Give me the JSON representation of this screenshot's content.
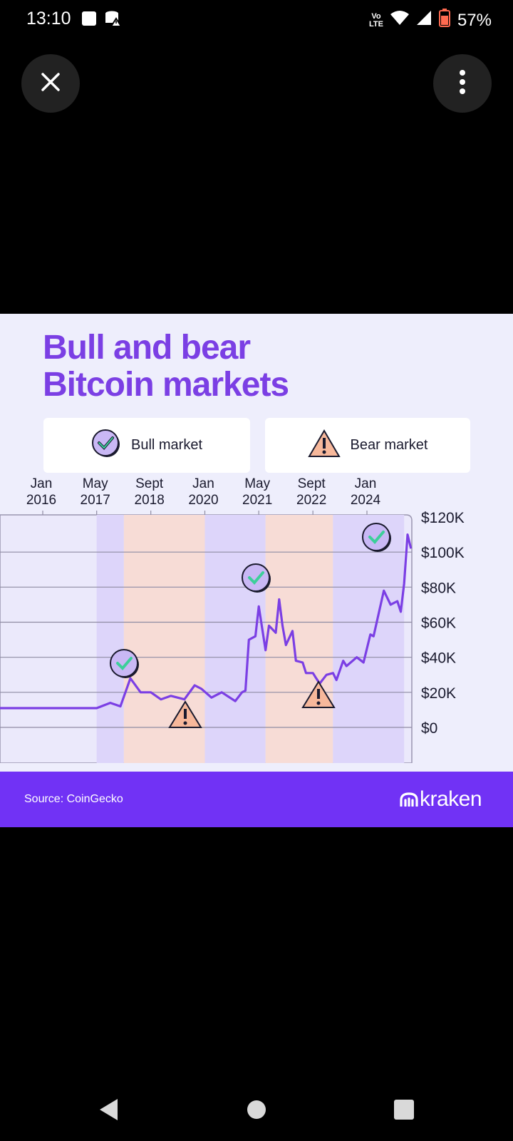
{
  "status_bar": {
    "time": "13:10",
    "battery_percent": "57%",
    "icons": [
      "notification-square-icon",
      "database-warning-icon",
      "volte-icon",
      "wifi-icon",
      "cell-signal-icon",
      "battery-icon"
    ]
  },
  "viewer": {
    "close_icon": "close-icon",
    "more_icon": "more-vertical-icon"
  },
  "image": {
    "title_line1": "Bull and bear",
    "title_line2": "Bitcoin markets",
    "legend": {
      "bull_label": "Bull market",
      "bear_label": "Bear market",
      "bull_icon": "check-badge-icon",
      "bear_icon": "warning-triangle-icon"
    },
    "colors": {
      "title": "#7b3fe4",
      "line": "#7b3fe4",
      "bull_band": "#ddd5fa",
      "bear_band": "#f7dcd6",
      "background": "#eeeefc",
      "footer": "#7132f5"
    },
    "source": "Source: CoinGecko",
    "brand": "kraken"
  },
  "chart_data": {
    "type": "line",
    "x_ticks": [
      {
        "line1": "Jan",
        "line2": "2016"
      },
      {
        "line1": "May",
        "line2": "2017"
      },
      {
        "line1": "Sept",
        "line2": "2018"
      },
      {
        "line1": "Jan",
        "line2": "2020"
      },
      {
        "line1": "May",
        "line2": "2021"
      },
      {
        "line1": "Sept",
        "line2": "2022"
      },
      {
        "line1": "Jan",
        "line2": "2024"
      }
    ],
    "y_ticks": [
      "$120K",
      "$100K",
      "$80K",
      "$60K",
      "$40K",
      "$20K",
      "$0"
    ],
    "ylim": [
      0,
      120000
    ],
    "grid": true,
    "periods": [
      {
        "type": "bull",
        "start": "2017-05",
        "end": "2018-01"
      },
      {
        "type": "bear",
        "start": "2018-01",
        "end": "2020-01"
      },
      {
        "type": "bull",
        "start": "2020-01",
        "end": "2021-07"
      },
      {
        "type": "bear",
        "start": "2021-07",
        "end": "2023-03"
      },
      {
        "type": "bull",
        "start": "2023-03",
        "end": "2024-12"
      }
    ],
    "series": [
      {
        "x": [
          "2014-06",
          "2015-06",
          "2016-01",
          "2016-06",
          "2017-01",
          "2017-05",
          "2017-09",
          "2017-12",
          "2018-03",
          "2018-06",
          "2018-09",
          "2018-12",
          "2019-03",
          "2019-07",
          "2019-10",
          "2019-12",
          "2020-03",
          "2020-06",
          "2020-10",
          "2020-12",
          "2021-01",
          "2021-02",
          "2021-04",
          "2021-05",
          "2021-07",
          "2021-08",
          "2021-10",
          "2021-11",
          "2021-12",
          "2022-01",
          "2022-03",
          "2022-04",
          "2022-06",
          "2022-07",
          "2022-09",
          "2022-10",
          "2022-11",
          "2023-01",
          "2023-03",
          "2023-04",
          "2023-06",
          "2023-07",
          "2023-10",
          "2023-12",
          "2024-01",
          "2024-02",
          "2024-03",
          "2024-06",
          "2024-08",
          "2024-10",
          "2024-11",
          "2024-12",
          "2025-01",
          "2025-02"
        ],
        "y": [
          11000,
          11000,
          11000,
          11000,
          11000,
          11000,
          14000,
          12000,
          28000,
          20000,
          20000,
          16000,
          18000,
          16000,
          24000,
          22000,
          17000,
          20000,
          15000,
          20000,
          21000,
          50000,
          52000,
          69000,
          44000,
          58000,
          54000,
          73000,
          58000,
          47000,
          55000,
          38000,
          37000,
          31000,
          31000,
          28000,
          25000,
          30000,
          31000,
          27000,
          38000,
          35000,
          40000,
          37000,
          45000,
          53000,
          52000,
          78000,
          70000,
          72000,
          66000,
          82000,
          110000,
          102000
        ]
      }
    ],
    "annotations": [
      "bull-icon",
      "bull-icon",
      "bull-icon",
      "bear-icon",
      "bear-icon"
    ]
  },
  "nav_bar": {
    "back_icon": "back-triangle-icon",
    "home_icon": "home-circle-icon",
    "recents_icon": "recents-square-icon"
  }
}
